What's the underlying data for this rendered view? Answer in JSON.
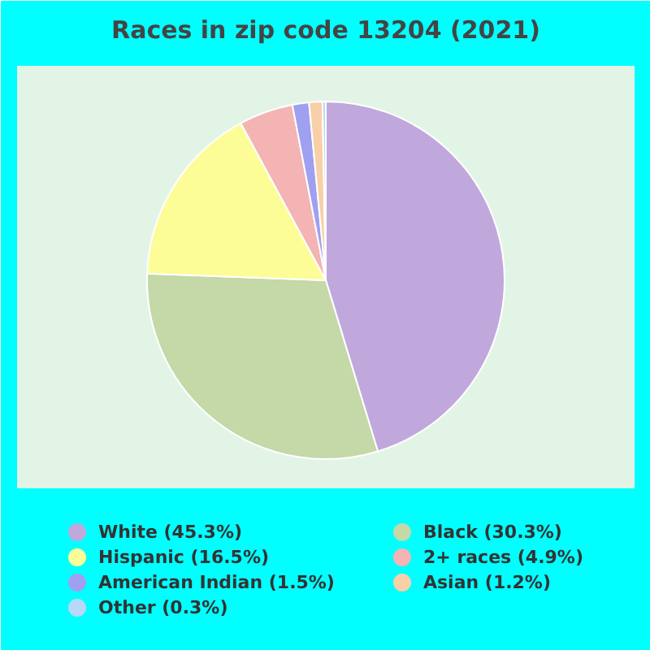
{
  "chart_data": {
    "type": "pie",
    "title": "Races in zip code 13204 (2021)",
    "categories": [
      "White (45.3%)",
      "Black (30.3%)",
      "Hispanic (16.5%)",
      "2+ races (4.9%)",
      "American Indian (1.5%)",
      "Asian (1.2%)",
      "Other (0.3%)"
    ],
    "values": [
      45.3,
      30.3,
      16.5,
      4.9,
      1.5,
      1.2,
      0.3
    ],
    "colors": [
      "#c0a8dc",
      "#c4d8a8",
      "#fdfd98",
      "#f4b4b4",
      "#a0a0f0",
      "#f8d0a8",
      "#b8d8f8"
    ],
    "legend": "bottom"
  }
}
